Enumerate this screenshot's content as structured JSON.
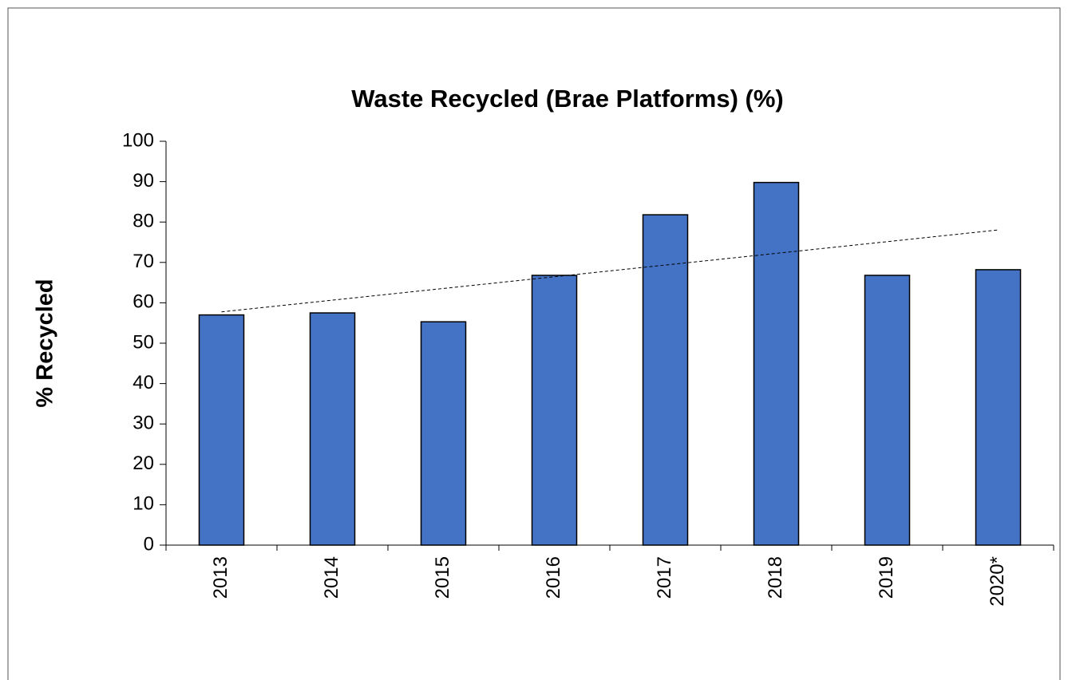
{
  "chart_data": {
    "type": "bar",
    "title": "Waste Recycled (Brae Platforms) (%)",
    "y_label": "% Recycled",
    "categories": [
      "2013",
      "2014",
      "2015",
      "2016",
      "2017",
      "2018",
      "2019",
      "2020*"
    ],
    "values": [
      57,
      57.5,
      55.3,
      66.8,
      81.8,
      89.8,
      66.8,
      68.2
    ],
    "color": "#4472c4",
    "trendline": true,
    "ylim": [
      0,
      100
    ],
    "yticks": [
      0,
      10,
      20,
      30,
      40,
      50,
      60,
      70,
      80,
      90,
      100
    ],
    "grid": false
  }
}
